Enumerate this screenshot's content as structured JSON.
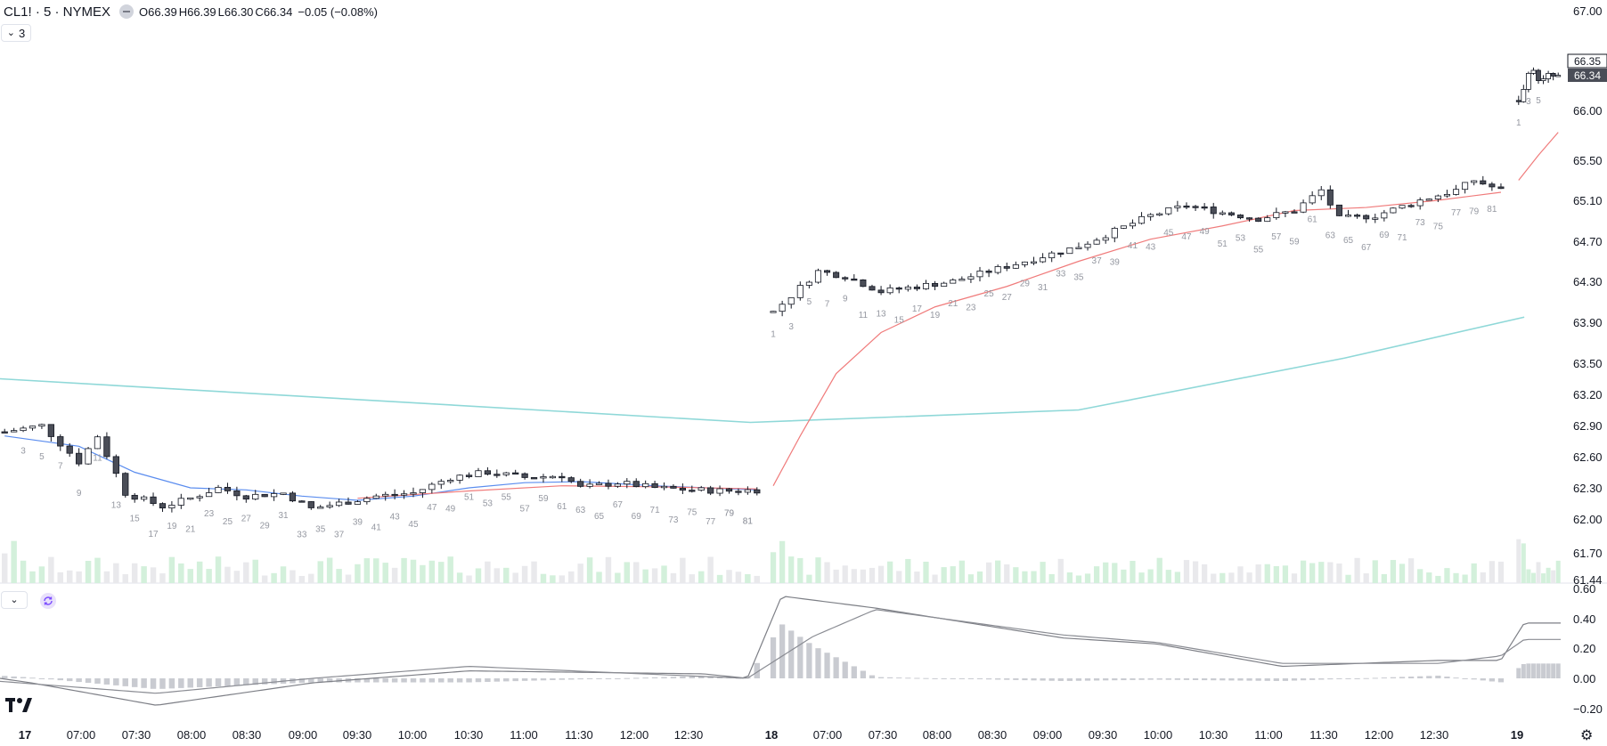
{
  "header": {
    "symbol": "CL1! · 5 · NYMEX",
    "open_label": "O",
    "open": "66.39",
    "high_label": "H",
    "high": "66.39",
    "low_label": "L",
    "low": "66.30",
    "close_label": "C",
    "close": "66.34",
    "change": "−0.05 (−0.08%)"
  },
  "collapse_button": {
    "count": "3"
  },
  "price_tags": {
    "upper": "66.35",
    "current": "66.34"
  },
  "colors": {
    "up_body": "#ffffff",
    "down_body": "#4a4d57",
    "wick": "#131722",
    "sma_blue": "#5b8def",
    "sma_red": "#f07b7b",
    "sma_teal": "#8fd8d8",
    "vol_up": "#d3f0db",
    "vol_down": "#e9e9ec",
    "hist": "#c9cbd1",
    "macd_line": "#7d7f86",
    "signal_line": "#8a8c93"
  },
  "chart_data": {
    "type": "candlestick",
    "price_axis": {
      "ticks": [
        "67.00",
        "66.00",
        "65.50",
        "65.10",
        "64.70",
        "64.30",
        "63.90",
        "63.50",
        "63.20",
        "62.90",
        "62.60",
        "62.30",
        "62.00",
        "61.70",
        "61.44"
      ]
    },
    "osc_axis": {
      "ticks": [
        "0.60",
        "0.40",
        "0.20",
        "0.00",
        "−0.20"
      ],
      "ylim": [
        -0.28,
        0.62
      ]
    },
    "time_axis": {
      "labels": [
        "17",
        "07:00",
        "07:30",
        "08:00",
        "08:30",
        "09:00",
        "09:30",
        "10:00",
        "10:30",
        "11:00",
        "11:30",
        "12:00",
        "12:30",
        "18",
        "07:00",
        "07:30",
        "08:00",
        "08:30",
        "09:00",
        "09:30",
        "10:00",
        "10:30",
        "11:00",
        "11:30",
        "12:00",
        "12:30",
        "19"
      ],
      "bold": [
        "17",
        "18",
        "19"
      ]
    },
    "sessions": [
      {
        "bars": 82,
        "close_path": [
          [
            0,
            62.84
          ],
          [
            4,
            62.9
          ],
          [
            8,
            62.55
          ],
          [
            10,
            62.8
          ],
          [
            13,
            62.25
          ],
          [
            17,
            62.12
          ],
          [
            20,
            62.2
          ],
          [
            23,
            62.3
          ],
          [
            26,
            62.22
          ],
          [
            30,
            62.25
          ],
          [
            33,
            62.1
          ],
          [
            36,
            62.15
          ],
          [
            40,
            62.22
          ],
          [
            44,
            62.25
          ],
          [
            48,
            62.4
          ],
          [
            52,
            62.45
          ],
          [
            56,
            62.4
          ],
          [
            60,
            62.42
          ],
          [
            62,
            62.3
          ],
          [
            66,
            62.35
          ],
          [
            70,
            62.3
          ],
          [
            74,
            62.28
          ],
          [
            78,
            62.27
          ],
          [
            81,
            62.28
          ]
        ],
        "bar_number_labels": [
          "79",
          "81",
          "3",
          "5",
          "7",
          "9",
          "11",
          "13",
          "15",
          "17",
          "19",
          "21",
          "23",
          "25",
          "27",
          "29",
          "31",
          "33",
          "35",
          "37",
          "39",
          "41",
          "43",
          "45",
          "47",
          "49",
          "51",
          "53",
          "55",
          "57",
          "59",
          "61",
          "63",
          "65",
          "67",
          "69",
          "71",
          "73",
          "75",
          "77",
          "79",
          "81"
        ],
        "sma_blue_path": [
          [
            0,
            62.8
          ],
          [
            8,
            62.7
          ],
          [
            14,
            62.45
          ],
          [
            20,
            62.3
          ],
          [
            26,
            62.28
          ],
          [
            32,
            62.22
          ],
          [
            38,
            62.18
          ],
          [
            44,
            62.22
          ],
          [
            50,
            62.3
          ],
          [
            56,
            62.35
          ],
          [
            62,
            62.36
          ],
          [
            70,
            62.32
          ],
          [
            81,
            62.28
          ]
        ],
        "sma_red_path": [
          [
            38,
            62.2
          ],
          [
            50,
            62.27
          ],
          [
            60,
            62.32
          ],
          [
            70,
            62.31
          ],
          [
            81,
            62.29
          ]
        ]
      },
      {
        "bars": 82,
        "close_path": [
          [
            0,
            64.0
          ],
          [
            5,
            64.4
          ],
          [
            8,
            64.35
          ],
          [
            12,
            64.2
          ],
          [
            16,
            64.25
          ],
          [
            20,
            64.3
          ],
          [
            26,
            64.45
          ],
          [
            30,
            64.55
          ],
          [
            34,
            64.65
          ],
          [
            38,
            64.8
          ],
          [
            42,
            64.95
          ],
          [
            46,
            65.05
          ],
          [
            50,
            64.98
          ],
          [
            54,
            64.92
          ],
          [
            58,
            65.0
          ],
          [
            61,
            65.2
          ],
          [
            63,
            64.92
          ],
          [
            67,
            64.95
          ],
          [
            72,
            65.1
          ],
          [
            76,
            65.2
          ],
          [
            78,
            65.3
          ],
          [
            81,
            65.2
          ]
        ],
        "bar_number_labels": [
          "1",
          "3",
          "5",
          "7",
          "9",
          "11",
          "13",
          "15",
          "17",
          "19",
          "21",
          "23",
          "25",
          "27",
          "29",
          "31",
          "33",
          "35",
          "37",
          "39",
          "41",
          "43",
          "45",
          "47",
          "49",
          "51",
          "53",
          "55",
          "57",
          "59",
          "61",
          "63",
          "65",
          "67",
          "69",
          "71",
          "73",
          "75",
          "77",
          "79",
          "81"
        ],
        "sma_red_path": [
          [
            0,
            62.32
          ],
          [
            3,
            62.8
          ],
          [
            7,
            63.4
          ],
          [
            12,
            63.8
          ],
          [
            18,
            64.05
          ],
          [
            26,
            64.25
          ],
          [
            34,
            64.5
          ],
          [
            42,
            64.72
          ],
          [
            50,
            64.85
          ],
          [
            58,
            65.0
          ],
          [
            66,
            65.03
          ],
          [
            74,
            65.1
          ],
          [
            81,
            65.18
          ]
        ]
      },
      {
        "bars": 9,
        "close_path": [
          [
            0,
            66.1
          ],
          [
            1,
            66.2
          ],
          [
            2,
            66.4
          ],
          [
            3,
            66.38
          ],
          [
            4,
            66.32
          ],
          [
            5,
            66.3
          ],
          [
            6,
            66.35
          ],
          [
            7,
            66.34
          ],
          [
            8,
            66.34
          ]
        ],
        "bar_number_labels": [
          "1",
          "3",
          "5"
        ],
        "sma_red_path": [
          [
            0,
            65.3
          ],
          [
            4,
            65.55
          ],
          [
            8,
            65.78
          ]
        ]
      }
    ],
    "sma_teal_path_note": "long-period moving average spanning all sessions",
    "sma_teal_path": [
      [
        0,
        63.35
      ],
      [
        0.48,
        62.93
      ],
      [
        0.69,
        63.05
      ],
      [
        0.86,
        63.55
      ],
      [
        0.975,
        63.95
      ]
    ]
  }
}
